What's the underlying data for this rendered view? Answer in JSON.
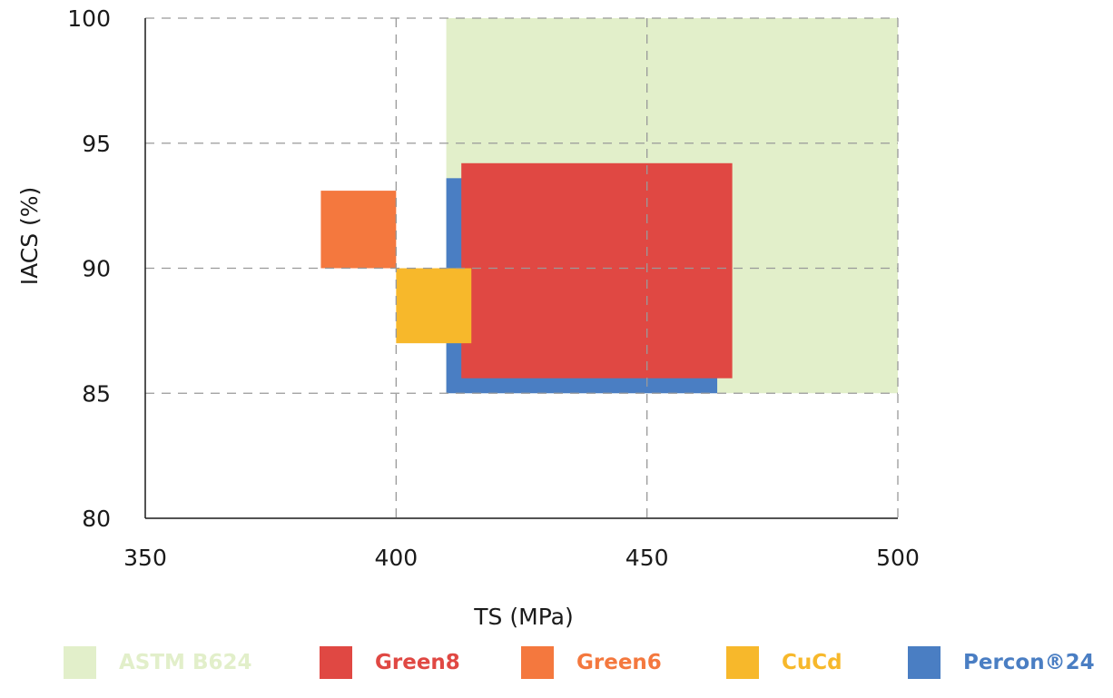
{
  "chart_data": {
    "type": "range-rectangles",
    "xlabel": "TS (MPa)",
    "ylabel": "IACS (%)",
    "xlim": [
      350,
      500
    ],
    "ylim": [
      80,
      100
    ],
    "xticks": [
      "350",
      "400",
      "450",
      "500"
    ],
    "yticks": [
      "80",
      "85",
      "90",
      "95",
      "100"
    ],
    "grid": true,
    "legend_position": "bottom",
    "series": [
      {
        "name": "ASTM B624",
        "color": "#e2efca",
        "label_color": "#e2efca",
        "x_range": [
          410,
          500
        ],
        "y_range": [
          85,
          100
        ]
      },
      {
        "name": "Percon®24",
        "color": "#4a7ec3",
        "label_color": "#4a7ec3",
        "x_range": [
          410,
          464
        ],
        "y_range": [
          85,
          93.6
        ]
      },
      {
        "name": "Green8",
        "color": "#e04843",
        "label_color": "#e04843",
        "x_range": [
          413,
          467
        ],
        "y_range": [
          85.6,
          94.2
        ]
      },
      {
        "name": "Green6",
        "color": "#f4783e",
        "label_color": "#f4783e",
        "x_range": [
          385,
          400
        ],
        "y_range": [
          90,
          93.1
        ]
      },
      {
        "name": "CuCd",
        "color": "#f7b82b",
        "label_color": "#f7b82b",
        "x_range": [
          400,
          415
        ],
        "y_range": [
          87,
          90
        ]
      }
    ],
    "legend_order": [
      "ASTM B624",
      "Green8",
      "Green6",
      "CuCd",
      "Percon®24"
    ]
  }
}
